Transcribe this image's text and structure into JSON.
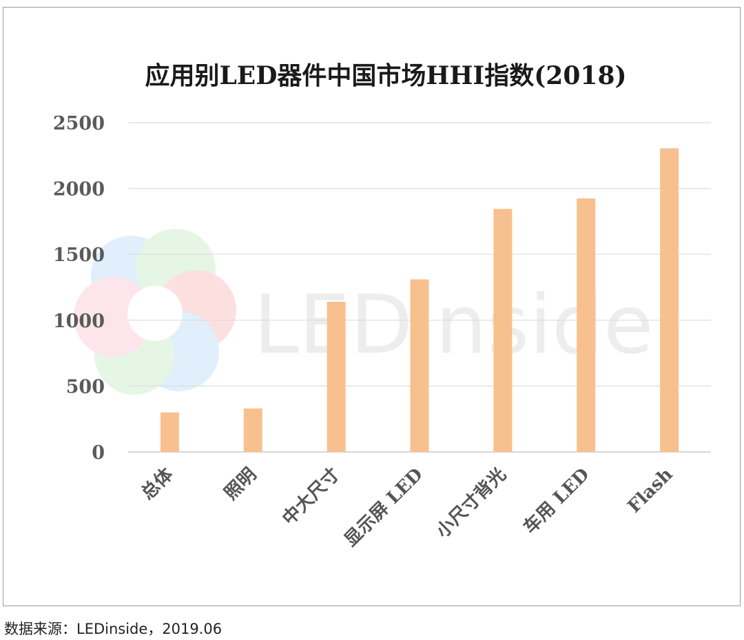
{
  "chart_data": {
    "type": "bar",
    "title": "应用别LED器件中国市场HHI指数(2018)",
    "categories": [
      "总体",
      "照明",
      "中大尺寸",
      "显示屏 LED",
      "小尺寸背光",
      "车用 LED",
      "Flash"
    ],
    "values": [
      300,
      330,
      1140,
      1310,
      1845,
      1925,
      2305
    ],
    "ylim": [
      0,
      2500
    ],
    "yticks": [
      0,
      500,
      1000,
      1500,
      2000,
      2500
    ],
    "grid": true,
    "legend": "none",
    "bar_color": "#f9c08f"
  },
  "watermark": {
    "text": "LEDinside"
  },
  "source": "数据来源：LEDinside，2019.06"
}
